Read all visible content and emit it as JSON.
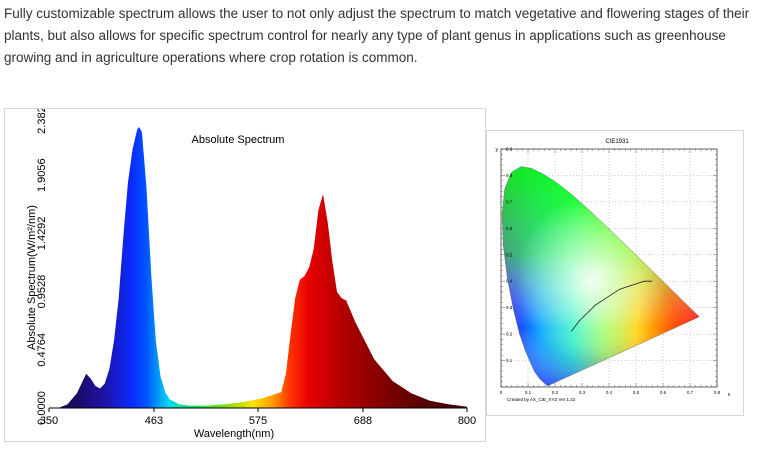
{
  "description": "Fully customizable spectrum allows the user to not only adjust the spectrum to match vegetative and flowering stages of their plants, but also allows for specific spectrum control for nearly any type of plant genus in applications such as greenhouse growing and in agriculture operations where crop rotation is common.",
  "chart_data": [
    {
      "type": "area",
      "title": "Absolute Spectrum",
      "xlabel": "Wavelength(nm)",
      "ylabel": "Absolute Spectrum(W/m²/nm)",
      "xlim": [
        350,
        800
      ],
      "ylim": [
        0,
        2.382
      ],
      "x_ticks": [
        "350",
        "463",
        "575",
        "688",
        "800"
      ],
      "y_ticks": [
        "0.0000",
        "0.4764",
        "0.9528",
        "1.4292",
        "1.9056",
        "2.3820"
      ],
      "grid": false,
      "x": [
        360,
        370,
        380,
        385,
        390,
        395,
        400,
        405,
        410,
        415,
        420,
        425,
        430,
        435,
        440,
        445,
        447,
        450,
        455,
        460,
        465,
        470,
        475,
        480,
        490,
        500,
        520,
        540,
        560,
        580,
        600,
        605,
        610,
        615,
        620,
        625,
        630,
        635,
        640,
        645,
        650,
        655,
        660,
        665,
        670,
        680,
        700,
        720,
        740,
        760,
        780,
        800
      ],
      "y": [
        0,
        0.03,
        0.12,
        0.2,
        0.28,
        0.24,
        0.18,
        0.16,
        0.2,
        0.32,
        0.55,
        0.9,
        1.4,
        1.85,
        2.12,
        2.28,
        2.3,
        2.26,
        1.8,
        1.1,
        0.55,
        0.26,
        0.13,
        0.07,
        0.03,
        0.02,
        0.02,
        0.03,
        0.05,
        0.08,
        0.13,
        0.28,
        0.6,
        0.9,
        1.05,
        1.08,
        1.15,
        1.3,
        1.62,
        1.75,
        1.52,
        1.2,
        0.95,
        0.9,
        0.88,
        0.7,
        0.4,
        0.22,
        0.12,
        0.06,
        0.03,
        0.01
      ]
    },
    {
      "type": "scatter",
      "title": "CIE1931",
      "xlabel": "x",
      "ylabel": "y",
      "xlim": [
        0,
        0.8
      ],
      "ylim": [
        0,
        0.9
      ],
      "x_ticks": [
        "0",
        "0.1",
        "0.2",
        "0.3",
        "0.4",
        "0.5",
        "0.6",
        "0.7",
        "0.8"
      ],
      "y_ticks": [
        "0.1",
        "0.2",
        "0.3",
        "0.4",
        "0.5",
        "0.6",
        "0.7",
        "0.8",
        "0.9"
      ],
      "grid": true,
      "credit": "Created by AX_CIE_XYZ Ver 1.22",
      "gamut_x": [
        0.1741,
        0.174,
        0.1738,
        0.1736,
        0.1733,
        0.1726,
        0.1714,
        0.1689,
        0.1644,
        0.1566,
        0.144,
        0.1241,
        0.0913,
        0.0687,
        0.0454,
        0.0235,
        0.0082,
        0.0039,
        0.0139,
        0.0389,
        0.0743,
        0.1142,
        0.1547,
        0.1929,
        0.2296,
        0.2658,
        0.3016,
        0.3373,
        0.3731,
        0.4087,
        0.4441,
        0.4788,
        0.5125,
        0.5448,
        0.5752,
        0.6029,
        0.627,
        0.6482,
        0.6658,
        0.6801,
        0.6915,
        0.7006,
        0.7079,
        0.714,
        0.719,
        0.723,
        0.726,
        0.7283,
        0.73,
        0.7347
      ],
      "gamut_y": [
        0.005,
        0.005,
        0.0049,
        0.0049,
        0.0048,
        0.0048,
        0.0051,
        0.0069,
        0.0109,
        0.0177,
        0.0297,
        0.0578,
        0.1327,
        0.2007,
        0.295,
        0.4127,
        0.5384,
        0.6548,
        0.7502,
        0.812,
        0.8338,
        0.8262,
        0.8059,
        0.7816,
        0.7543,
        0.7243,
        0.6923,
        0.6589,
        0.6245,
        0.5896,
        0.5547,
        0.5202,
        0.4866,
        0.4544,
        0.4242,
        0.3965,
        0.3725,
        0.3514,
        0.334,
        0.3197,
        0.3083,
        0.2993,
        0.292,
        0.2859,
        0.2809,
        0.277,
        0.274,
        0.2717,
        0.27,
        0.2653
      ],
      "locus_x": [
        0.56,
        0.53,
        0.5,
        0.47,
        0.44,
        0.41,
        0.38,
        0.35,
        0.32,
        0.29,
        0.26
      ],
      "locus_y": [
        0.4,
        0.4,
        0.39,
        0.38,
        0.37,
        0.35,
        0.33,
        0.31,
        0.28,
        0.25,
        0.21
      ]
    }
  ]
}
